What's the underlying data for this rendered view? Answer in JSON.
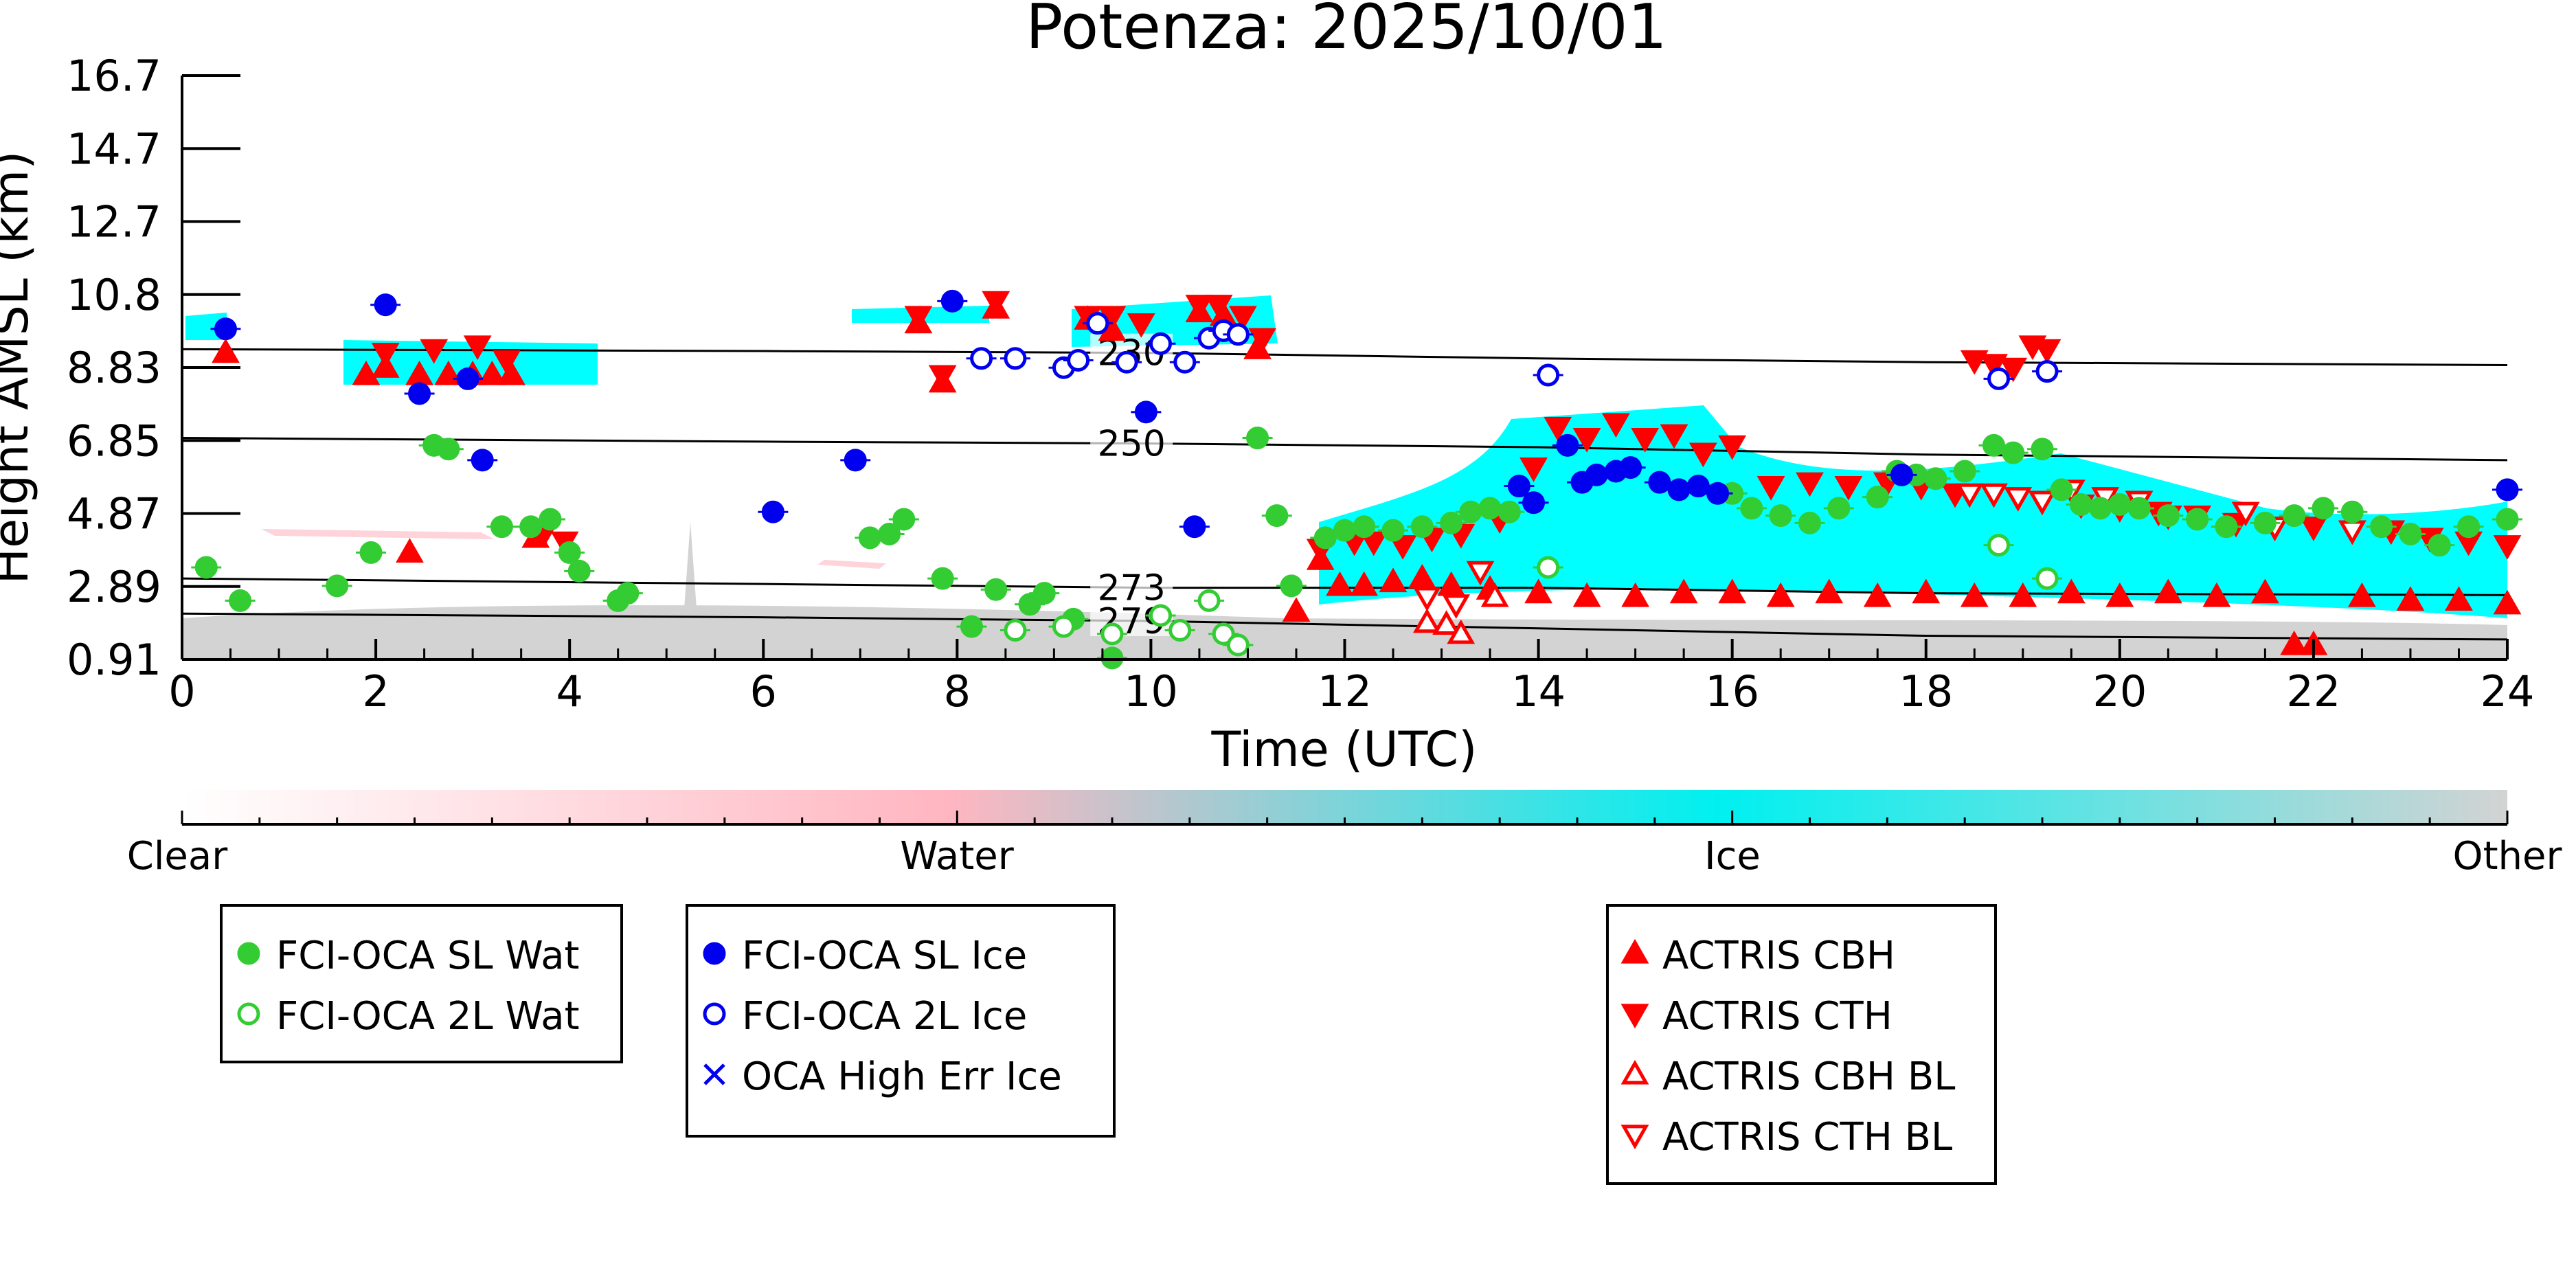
{
  "chart_data": {
    "type": "scatter",
    "title": "Potenza: 2025/10/01",
    "xlabel": "Time (UTC)",
    "ylabel": "Height AMSL (km)",
    "xlim": [
      0,
      24
    ],
    "ylim": [
      0.91,
      16.7
    ],
    "x_ticks": [
      "0",
      "2",
      "4",
      "6",
      "8",
      "10",
      "12",
      "14",
      "16",
      "18",
      "20",
      "22",
      "24"
    ],
    "y_ticks": [
      "0.91",
      "2.89",
      "4.87",
      "6.85",
      "8.83",
      "10.8",
      "12.7",
      "14.7",
      "16.7"
    ],
    "background": "Cloudnet target classification curtain (Clear / Water / Ice / Other)",
    "colorbar": {
      "labels": [
        "Clear",
        "Water",
        "Ice",
        "Other"
      ],
      "colors": {
        "Clear": "#ffffff",
        "Water": "#ffb6c1",
        "Ice": "#00ffff",
        "Other": "#d3d3d3"
      }
    },
    "isotherms": [
      {
        "label": "230",
        "points": [
          [
            0,
            9.3
          ],
          [
            6,
            9.25
          ],
          [
            10,
            9.2
          ],
          [
            14,
            9.05
          ],
          [
            18,
            8.95
          ],
          [
            24,
            8.87
          ]
        ]
      },
      {
        "label": "250",
        "points": [
          [
            0,
            6.9
          ],
          [
            6,
            6.8
          ],
          [
            10,
            6.75
          ],
          [
            14,
            6.65
          ],
          [
            18,
            6.45
          ],
          [
            24,
            6.3
          ]
        ]
      },
      {
        "label": "273",
        "points": [
          [
            0,
            3.1
          ],
          [
            6,
            2.95
          ],
          [
            10,
            2.85
          ],
          [
            14,
            2.85
          ],
          [
            18,
            2.7
          ],
          [
            24,
            2.65
          ]
        ]
      },
      {
        "label": "279",
        "points": [
          [
            0,
            2.15
          ],
          [
            6,
            2.05
          ],
          [
            10,
            1.95
          ],
          [
            14,
            1.75
          ],
          [
            18,
            1.55
          ],
          [
            24,
            1.45
          ]
        ]
      }
    ],
    "series": [
      {
        "name": "FCI-OCA SL Wat",
        "color": "#33cc33",
        "marker": "filled-circle",
        "points": [
          [
            0.25,
            3.4
          ],
          [
            0.6,
            2.5
          ],
          [
            1.6,
            2.9
          ],
          [
            1.95,
            3.8
          ],
          [
            2.6,
            6.7
          ],
          [
            2.75,
            6.6
          ],
          [
            3.3,
            4.5
          ],
          [
            3.6,
            4.5
          ],
          [
            3.8,
            4.7
          ],
          [
            4,
            3.8
          ],
          [
            4.1,
            3.3
          ],
          [
            4.5,
            2.5
          ],
          [
            4.6,
            2.7
          ],
          [
            7.1,
            4.2
          ],
          [
            7.3,
            4.3
          ],
          [
            7.45,
            4.7
          ],
          [
            7.85,
            3.1
          ],
          [
            8.15,
            1.8
          ],
          [
            8.4,
            2.8
          ],
          [
            8.75,
            2.4
          ],
          [
            8.9,
            2.7
          ],
          [
            9.2,
            2.0
          ],
          [
            11.1,
            6.9
          ],
          [
            11.3,
            4.8
          ],
          [
            11.45,
            2.9
          ],
          [
            11.8,
            4.2
          ],
          [
            12,
            4.4
          ],
          [
            12.2,
            4.5
          ],
          [
            12.5,
            4.4
          ],
          [
            12.8,
            4.5
          ],
          [
            13.1,
            4.6
          ],
          [
            13.3,
            4.9
          ],
          [
            13.5,
            5.0
          ],
          [
            13.7,
            4.9
          ],
          [
            16,
            5.4
          ],
          [
            16.2,
            5.0
          ],
          [
            16.5,
            4.8
          ],
          [
            16.8,
            4.6
          ],
          [
            17.1,
            5.0
          ],
          [
            17.5,
            5.3
          ],
          [
            17.7,
            6.0
          ],
          [
            17.9,
            5.9
          ],
          [
            18.1,
            5.8
          ],
          [
            18.4,
            6.0
          ],
          [
            18.7,
            6.7
          ],
          [
            18.9,
            6.5
          ],
          [
            19.2,
            6.6
          ],
          [
            19.4,
            5.5
          ],
          [
            19.6,
            5.1
          ],
          [
            19.8,
            5.0
          ],
          [
            20,
            5.1
          ],
          [
            20.2,
            5.0
          ],
          [
            20.5,
            4.8
          ],
          [
            20.8,
            4.7
          ],
          [
            21.1,
            4.5
          ],
          [
            21.5,
            4.6
          ],
          [
            21.8,
            4.8
          ],
          [
            22.1,
            5.0
          ],
          [
            22.4,
            4.9
          ],
          [
            22.7,
            4.5
          ],
          [
            23,
            4.3
          ],
          [
            23.3,
            4.0
          ],
          [
            23.6,
            4.5
          ],
          [
            24,
            4.7
          ],
          [
            9.6,
            0.95
          ]
        ]
      },
      {
        "name": "FCI-OCA 2L Wat",
        "color": "#33cc33",
        "marker": "open-circle",
        "points": [
          [
            8.6,
            1.7
          ],
          [
            9.1,
            1.8
          ],
          [
            9.6,
            1.6
          ],
          [
            10.1,
            2.1
          ],
          [
            10.3,
            1.7
          ],
          [
            10.6,
            2.5
          ],
          [
            10.75,
            1.6
          ],
          [
            10.9,
            1.3
          ],
          [
            14.1,
            3.4
          ],
          [
            18.75,
            4.0
          ],
          [
            19.25,
            3.1
          ]
        ]
      },
      {
        "name": "FCI-OCA SL Ice",
        "color": "#0000ee",
        "marker": "filled-circle",
        "points": [
          [
            0.45,
            9.85
          ],
          [
            2.1,
            10.5
          ],
          [
            2.45,
            8.1
          ],
          [
            2.95,
            8.5
          ],
          [
            3.1,
            6.3
          ],
          [
            6.1,
            4.9
          ],
          [
            6.95,
            6.3
          ],
          [
            7.95,
            10.6
          ],
          [
            9.95,
            7.6
          ],
          [
            10.45,
            4.5
          ],
          [
            13.8,
            5.6
          ],
          [
            13.95,
            5.15
          ],
          [
            14.3,
            6.7
          ],
          [
            14.45,
            5.7
          ],
          [
            14.6,
            5.9
          ],
          [
            14.8,
            6.0
          ],
          [
            14.95,
            6.1
          ],
          [
            15.25,
            5.7
          ],
          [
            15.45,
            5.5
          ],
          [
            15.65,
            5.6
          ],
          [
            15.85,
            5.4
          ],
          [
            17.75,
            5.9
          ],
          [
            24,
            5.5
          ]
        ]
      },
      {
        "name": "FCI-OCA 2L Ice",
        "color": "#0000ee",
        "marker": "open-circle",
        "points": [
          [
            8.25,
            9.05
          ],
          [
            8.6,
            9.05
          ],
          [
            9.1,
            8.8
          ],
          [
            9.25,
            9.0
          ],
          [
            9.45,
            10.0
          ],
          [
            9.75,
            8.95
          ],
          [
            10.1,
            9.45
          ],
          [
            10.35,
            8.95
          ],
          [
            10.6,
            9.6
          ],
          [
            10.75,
            9.8
          ],
          [
            10.9,
            9.7
          ],
          [
            14.1,
            8.6
          ],
          [
            18.75,
            8.5
          ],
          [
            19.25,
            8.7
          ]
        ]
      },
      {
        "name": "OCA High Err Ice",
        "color": "#0000ee",
        "marker": "x",
        "points": []
      },
      {
        "name": "ACTRIS CBH",
        "color": "#ff0000",
        "marker": "filled-triangle-up",
        "points": [
          [
            0.45,
            9.2
          ],
          [
            1.9,
            8.6
          ],
          [
            2.1,
            8.8
          ],
          [
            2.35,
            3.8
          ],
          [
            2.45,
            8.6
          ],
          [
            2.75,
            8.6
          ],
          [
            3.0,
            8.6
          ],
          [
            3.2,
            8.6
          ],
          [
            3.4,
            8.6
          ],
          [
            3.65,
            4.2
          ],
          [
            7.6,
            10.0
          ],
          [
            7.85,
            8.4
          ],
          [
            8.4,
            10.4
          ],
          [
            9.35,
            10.1
          ],
          [
            9.6,
            9.8
          ],
          [
            10.5,
            10.3
          ],
          [
            10.75,
            10.2
          ],
          [
            11.1,
            9.3
          ],
          [
            11.5,
            2.2
          ],
          [
            11.75,
            3.6
          ],
          [
            11.95,
            2.9
          ],
          [
            12.2,
            2.9
          ],
          [
            12.5,
            3.0
          ],
          [
            12.8,
            3.1
          ],
          [
            13.1,
            2.9
          ],
          [
            13.5,
            2.8
          ],
          [
            14,
            2.7
          ],
          [
            14.5,
            2.6
          ],
          [
            15,
            2.6
          ],
          [
            15.5,
            2.7
          ],
          [
            16,
            2.7
          ],
          [
            16.5,
            2.6
          ],
          [
            17,
            2.7
          ],
          [
            17.5,
            2.6
          ],
          [
            18,
            2.7
          ],
          [
            18.5,
            2.6
          ],
          [
            19,
            2.6
          ],
          [
            19.5,
            2.7
          ],
          [
            20,
            2.6
          ],
          [
            20.5,
            2.7
          ],
          [
            21,
            2.6
          ],
          [
            21.5,
            2.7
          ],
          [
            21.8,
            1.3
          ],
          [
            22,
            1.3
          ],
          [
            22.5,
            2.6
          ],
          [
            23,
            2.5
          ],
          [
            23.5,
            2.5
          ],
          [
            24,
            2.4
          ]
        ]
      },
      {
        "name": "ACTRIS CTH",
        "color": "#ff0000",
        "marker": "filled-triangle-down",
        "points": [
          [
            2.1,
            9.2
          ],
          [
            2.6,
            9.3
          ],
          [
            3.05,
            9.4
          ],
          [
            3.35,
            9.0
          ],
          [
            3.75,
            4.4
          ],
          [
            3.95,
            4.1
          ],
          [
            7.6,
            10.2
          ],
          [
            7.85,
            8.6
          ],
          [
            8.4,
            10.6
          ],
          [
            9.35,
            10.2
          ],
          [
            9.6,
            10.2
          ],
          [
            9.9,
            10.0
          ],
          [
            10.5,
            10.5
          ],
          [
            10.7,
            10.5
          ],
          [
            10.95,
            10.2
          ],
          [
            11.15,
            9.6
          ],
          [
            11.75,
            3.9
          ],
          [
            12.1,
            4.1
          ],
          [
            12.3,
            4.1
          ],
          [
            12.6,
            4.0
          ],
          [
            12.9,
            4.2
          ],
          [
            13.2,
            4.3
          ],
          [
            13.6,
            4.7
          ],
          [
            13.95,
            6.1
          ],
          [
            14.2,
            7.2
          ],
          [
            14.5,
            6.9
          ],
          [
            14.8,
            7.3
          ],
          [
            15.1,
            6.9
          ],
          [
            15.4,
            7.0
          ],
          [
            15.7,
            6.5
          ],
          [
            16.0,
            6.7
          ],
          [
            16.4,
            5.6
          ],
          [
            16.8,
            5.7
          ],
          [
            17.2,
            5.6
          ],
          [
            17.6,
            5.7
          ],
          [
            17.95,
            5.6
          ],
          [
            18.3,
            5.4
          ],
          [
            18.5,
            9.0
          ],
          [
            18.7,
            8.9
          ],
          [
            18.9,
            8.8
          ],
          [
            19.1,
            9.4
          ],
          [
            19.25,
            9.3
          ],
          [
            19.6,
            5.1
          ],
          [
            20,
            5.0
          ],
          [
            20.4,
            4.9
          ],
          [
            20.8,
            4.8
          ],
          [
            21.2,
            4.6
          ],
          [
            21.6,
            4.5
          ],
          [
            22,
            4.5
          ],
          [
            22.4,
            4.4
          ],
          [
            22.8,
            4.4
          ],
          [
            23.2,
            4.2
          ],
          [
            23.6,
            4.1
          ],
          [
            24,
            4.0
          ]
        ]
      },
      {
        "name": "ACTRIS CBH BL",
        "color": "#ff0000",
        "marker": "open-triangle-up",
        "points": [
          [
            12.85,
            1.9
          ],
          [
            13.05,
            1.85
          ],
          [
            13.2,
            1.6
          ],
          [
            13.55,
            2.6
          ]
        ]
      },
      {
        "name": "ACTRIS CTH BL",
        "color": "#ff0000",
        "marker": "open-triangle-down",
        "points": [
          [
            12.85,
            2.6
          ],
          [
            13.15,
            2.4
          ],
          [
            13.4,
            3.3
          ],
          [
            18.45,
            5.4
          ],
          [
            18.7,
            5.4
          ],
          [
            18.95,
            5.3
          ],
          [
            19.2,
            5.2
          ],
          [
            19.5,
            5.5
          ],
          [
            19.85,
            5.3
          ],
          [
            20.2,
            5.2
          ],
          [
            20.5,
            4.8
          ],
          [
            21.3,
            4.9
          ],
          [
            21.6,
            4.5
          ],
          [
            22.4,
            4.4
          ]
        ]
      }
    ],
    "legend_groups": [
      [
        "FCI-OCA SL Wat",
        "FCI-OCA 2L Wat"
      ],
      [
        "FCI-OCA SL Ice",
        "FCI-OCA 2L Ice",
        "OCA High Err Ice"
      ],
      [
        "ACTRIS CBH",
        "ACTRIS CTH",
        "ACTRIS CBH BL",
        "ACTRIS CTH BL"
      ]
    ]
  }
}
